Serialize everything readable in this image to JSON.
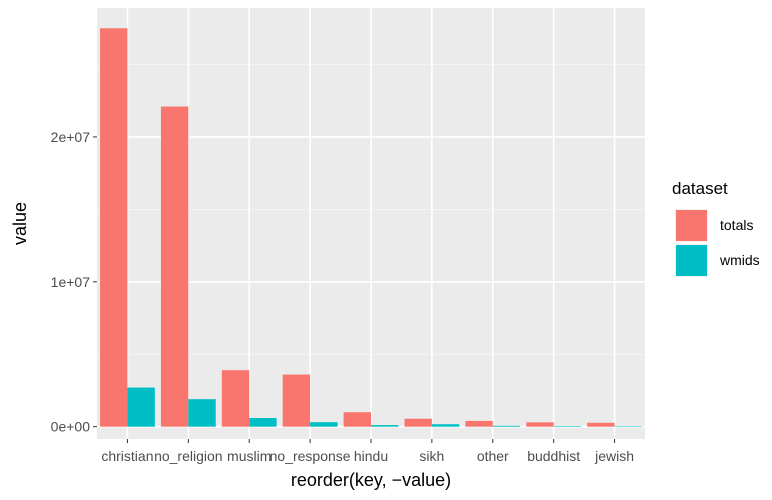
{
  "chart_data": {
    "type": "bar",
    "xlabel": "reorder(key, −value)",
    "ylabel": "value",
    "categories": [
      "christian",
      "no_religion",
      "muslim",
      "no_response",
      "hindu",
      "sikh",
      "other",
      "buddhist",
      "jewish"
    ],
    "series": [
      {
        "name": "totals",
        "color": "#F8766D",
        "values": [
          27500000,
          22100000,
          3900000,
          3600000,
          1000000,
          550000,
          400000,
          300000,
          270000
        ]
      },
      {
        "name": "wmids",
        "color": "#00BFC4",
        "values": [
          2700000,
          1900000,
          600000,
          310000,
          110000,
          170000,
          60000,
          40000,
          15000
        ]
      }
    ],
    "ylim": [
      -850000,
      28900000
    ],
    "yticks": [
      0,
      10000000,
      20000000
    ],
    "ytick_labels": [
      "0e+00",
      "1e+07",
      "2e+07"
    ],
    "grid": true,
    "legend": {
      "title": "dataset",
      "position": "right"
    }
  }
}
